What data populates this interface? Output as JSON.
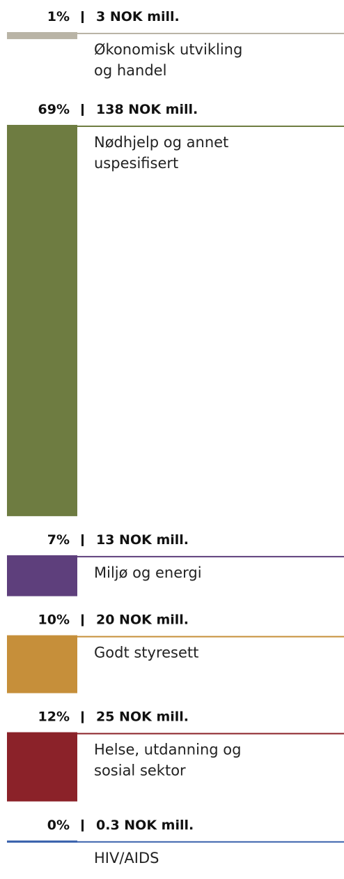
{
  "chart_data": {
    "type": "stacked_column",
    "categories": [
      [
        "Økonomisk utvikling",
        "og handel"
      ],
      [
        "Nødhjelp og annet",
        "uspesifisert"
      ],
      [
        "Miljø og energi"
      ],
      [
        "Godt styresett"
      ],
      [
        "Helse, utdanning og",
        "sosial sektor"
      ],
      [
        "HIV/AIDS"
      ]
    ],
    "values": [
      1,
      69,
      7,
      10,
      12,
      0
    ],
    "value_labels": [
      "1%",
      "69%",
      "7%",
      "10%",
      "12%",
      "0%"
    ],
    "amounts": [
      3,
      138,
      13,
      20,
      25,
      0.3
    ],
    "amount_labels": [
      "3 NOK mill.",
      "138 NOK mill.",
      "13 NOK mill.",
      "20 NOK mill.",
      "25 NOK mill.",
      "0.3 NOK mill."
    ],
    "colors": [
      "#b9b4a6",
      "#6e7c41",
      "#5e3f7c",
      "#c68f3a",
      "#8b2229",
      "#3a62ad"
    ]
  }
}
